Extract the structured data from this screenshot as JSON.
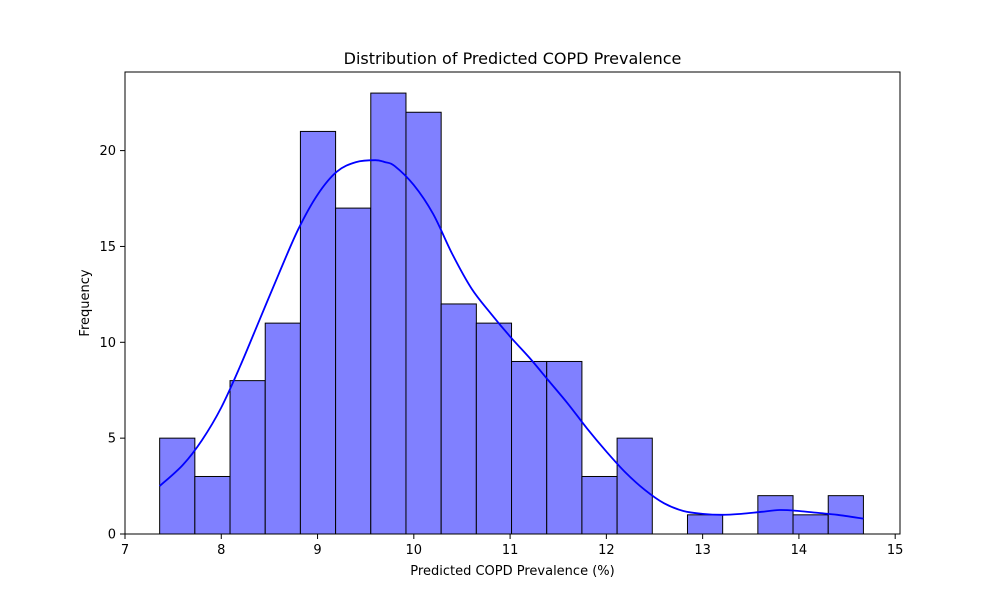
{
  "chart_data": {
    "type": "bar",
    "title": "Distribution of Predicted COPD Prevalence",
    "xlabel": "Predicted COPD Prevalence (%)",
    "ylabel": "Frequency",
    "xlim": [
      7,
      15.05
    ],
    "ylim": [
      0,
      24.1
    ],
    "xticks": [
      7,
      8,
      9,
      10,
      11,
      12,
      13,
      14,
      15
    ],
    "yticks": [
      0,
      5,
      10,
      15,
      20
    ],
    "bin_start": 7.36,
    "bin_width": 0.3655,
    "counts": [
      5,
      3,
      8,
      11,
      21,
      17,
      23,
      22,
      12,
      11,
      9,
      9,
      3,
      5,
      0,
      1,
      0,
      2,
      1,
      2
    ],
    "bar_fill": "#8080ff",
    "bar_edge": "#000000",
    "kde_color": "#0000ff",
    "kde": {
      "x": [
        7.36,
        7.6,
        7.8,
        8.0,
        8.2,
        8.4,
        8.6,
        8.8,
        9.0,
        9.2,
        9.4,
        9.6,
        9.7,
        9.8,
        10.0,
        10.2,
        10.4,
        10.6,
        10.8,
        11.0,
        11.2,
        11.4,
        11.6,
        11.8,
        12.0,
        12.2,
        12.4,
        12.6,
        12.8,
        13.0,
        13.2,
        13.4,
        13.6,
        13.8,
        14.0,
        14.2,
        14.4,
        14.67
      ],
      "y": [
        2.5,
        3.6,
        4.9,
        6.6,
        8.8,
        11.2,
        13.6,
        15.9,
        17.7,
        18.9,
        19.4,
        19.5,
        19.4,
        19.2,
        18.2,
        16.7,
        14.6,
        12.8,
        11.5,
        10.3,
        9.2,
        8.0,
        6.8,
        5.5,
        4.3,
        3.2,
        2.3,
        1.6,
        1.2,
        1.05,
        1.0,
        1.05,
        1.15,
        1.25,
        1.2,
        1.1,
        1.0,
        0.8
      ]
    }
  }
}
